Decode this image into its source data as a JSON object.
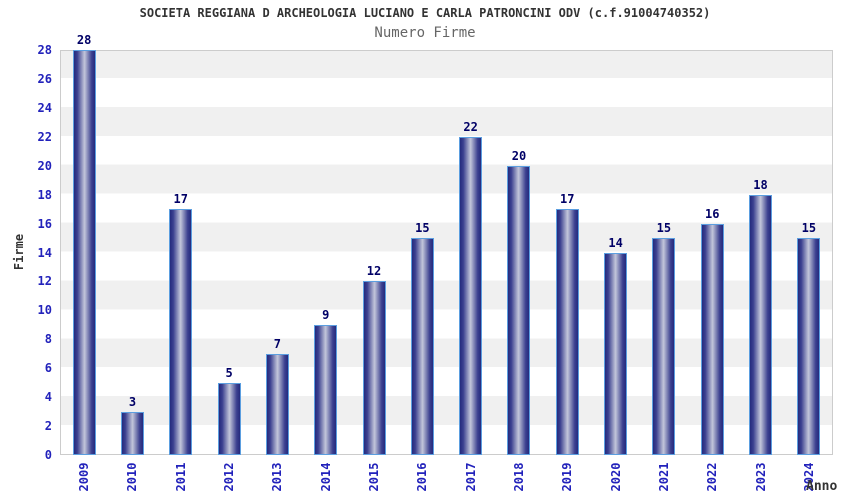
{
  "chart": {
    "title": "SOCIETA REGGIANA D ARCHEOLOGIA LUCIANO E CARLA PATRONCINI ODV (c.f.91004740352)",
    "subtitle": "Numero Firme",
    "ylabel": "Firme",
    "xlabel": "Anno"
  },
  "chart_data": {
    "type": "bar",
    "title": "SOCIETA REGGIANA D ARCHEOLOGIA LUCIANO E CARLA PATRONCINI ODV (c.f.91004740352)",
    "subtitle": "Numero Firme",
    "xlabel": "Anno",
    "ylabel": "Firme",
    "categories": [
      "2009",
      "2010",
      "2011",
      "2012",
      "2013",
      "2014",
      "2015",
      "2016",
      "2017",
      "2018",
      "2019",
      "2020",
      "2021",
      "2022",
      "2023",
      "2024"
    ],
    "values": [
      28,
      3,
      17,
      5,
      7,
      9,
      12,
      15,
      22,
      20,
      17,
      14,
      15,
      16,
      18,
      15
    ],
    "ylim": [
      0,
      28
    ],
    "ytick_step": 2,
    "grid": "horizontal-bands-alternating",
    "legend": "none",
    "bar_labels_shown": true
  },
  "colors": {
    "title": "#333333",
    "subtitle": "#666666",
    "tick_label": "#2222bb",
    "value_label": "#000066",
    "axis_label": "#333333",
    "plot_border": "#cccccc",
    "band_gray": "#f0f0f0",
    "band_white": "#ffffff",
    "bar_edge_dark": "#252a7d",
    "bar_mid": "#3c4190",
    "bar_center_light": "#c3c6da",
    "bar_border": "#5b9ee0"
  }
}
